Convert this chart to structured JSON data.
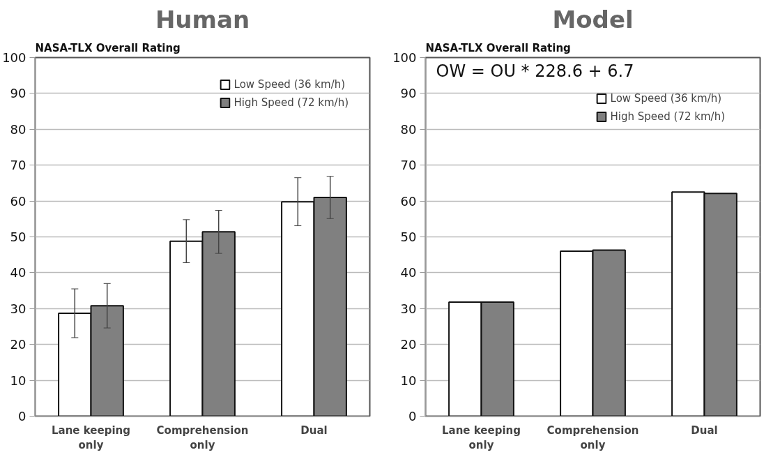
{
  "chart_data": [
    {
      "type": "bar",
      "title": "Human",
      "subtitle": "NASA-TLX Overall Rating",
      "categories": [
        "Lane keeping\nonly",
        "Comprehension\nonly",
        "Dual"
      ],
      "series": [
        {
          "name": "Low Speed (36 km/h)",
          "color": "#ffffff",
          "values": [
            28.7,
            48.8,
            59.8
          ],
          "errors": [
            6.8,
            6.0,
            6.7
          ]
        },
        {
          "name": "High Speed (72 km/h)",
          "color": "#808080",
          "values": [
            30.8,
            51.4,
            61.0
          ],
          "errors": [
            6.2,
            6.0,
            5.9
          ]
        }
      ],
      "ylim": [
        0,
        100
      ],
      "yticks": [
        0,
        10,
        20,
        30,
        40,
        50,
        60,
        70,
        80,
        90,
        100
      ],
      "grid": "y",
      "legend": "top right"
    },
    {
      "type": "bar",
      "title": "Model",
      "subtitle": "NASA-TLX Overall Rating",
      "categories": [
        "Lane keeping\nonly",
        "Comprehension\nonly",
        "Dual"
      ],
      "series": [
        {
          "name": "Low Speed (36 km/h)",
          "color": "#ffffff",
          "values": [
            31.8,
            46.0,
            62.5
          ]
        },
        {
          "name": "High Speed (72 km/h)",
          "color": "#808080",
          "values": [
            31.8,
            46.3,
            62.1
          ]
        }
      ],
      "annotations": [
        "OW = OU * 228.6 + 6.7"
      ],
      "ylim": [
        0,
        100
      ],
      "yticks": [
        0,
        10,
        20,
        30,
        40,
        50,
        60,
        70,
        80,
        90,
        100
      ],
      "grid": "y",
      "legend": "top right"
    }
  ]
}
